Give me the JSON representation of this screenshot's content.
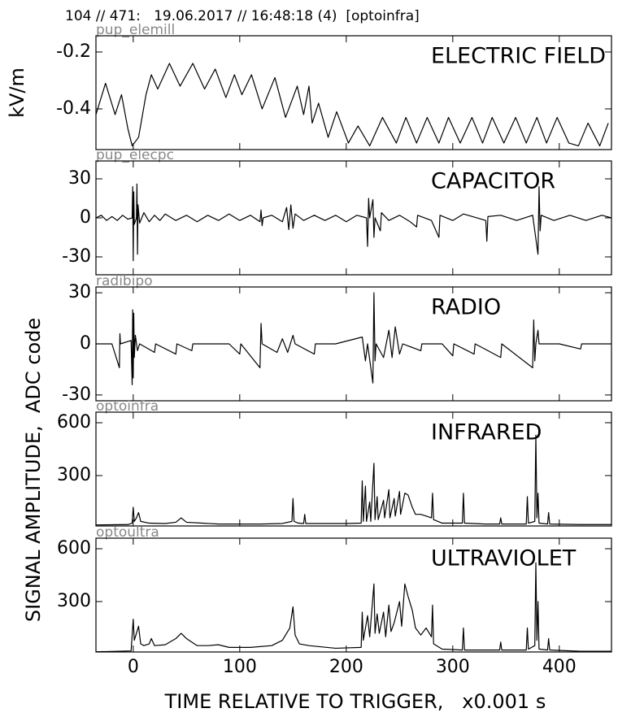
{
  "header": "104 // 471:   19.06.2017 // 16:48:18 (4)  [optoinfra]",
  "ylabel": "SIGNAL AMPLITUDE,  ADC code",
  "xlabel": "TIME RELATIVE TO TRIGGER,   x0.001 s",
  "chart_data": [
    {
      "type": "line",
      "source_label": "pup_elemill",
      "title": "ELECTRIC FIELD",
      "ylabel": "kV/m",
      "x": [
        -35,
        -26,
        -17,
        -11,
        -5,
        -1,
        5,
        12,
        17,
        23,
        34,
        44,
        56,
        67,
        77,
        87,
        95,
        102,
        111,
        121,
        133,
        143,
        154,
        160,
        165,
        168,
        174,
        183,
        191,
        202,
        211,
        222,
        234,
        247,
        256,
        266,
        276,
        287,
        296,
        307,
        318,
        328,
        337,
        348,
        359,
        369,
        379,
        388,
        398,
        409,
        418,
        427,
        438,
        446
      ],
      "series": [
        {
          "color": "#000000",
          "values": [
            -0.42,
            -0.31,
            -0.42,
            -0.35,
            -0.47,
            -0.53,
            -0.5,
            -0.35,
            -0.28,
            -0.33,
            -0.24,
            -0.32,
            -0.24,
            -0.33,
            -0.26,
            -0.36,
            -0.28,
            -0.35,
            -0.28,
            -0.4,
            -0.29,
            -0.43,
            -0.32,
            -0.42,
            -0.32,
            -0.45,
            -0.38,
            -0.5,
            -0.41,
            -0.52,
            -0.46,
            -0.53,
            -0.43,
            -0.52,
            -0.43,
            -0.52,
            -0.43,
            -0.52,
            -0.43,
            -0.52,
            -0.43,
            -0.52,
            -0.43,
            -0.52,
            -0.43,
            -0.52,
            -0.43,
            -0.52,
            -0.43,
            -0.52,
            -0.53,
            -0.45,
            -0.53,
            -0.45
          ]
        }
      ],
      "xlim": [
        -35,
        449
      ],
      "xticks": [
        0,
        100,
        200,
        300,
        400
      ],
      "ylim": [
        -0.543,
        -0.143
      ],
      "yticks": [
        -0.2,
        -0.4
      ]
    },
    {
      "type": "line",
      "source_label": "pup_elecpc",
      "title": "CAPACITOR",
      "x": [
        -35,
        -30,
        -25,
        -20,
        -15,
        -10,
        -5,
        -1,
        -0.5,
        0,
        0.5,
        1,
        3,
        3.5,
        4,
        4.5,
        6,
        10,
        15,
        20,
        25,
        30,
        40,
        50,
        60,
        70,
        80,
        90,
        100,
        110,
        119,
        120,
        121,
        122,
        130,
        140,
        144,
        146,
        148,
        150,
        152,
        160,
        170,
        180,
        190,
        200,
        210,
        219,
        220,
        221,
        222,
        225,
        226,
        227,
        232,
        233,
        240,
        250,
        260,
        266,
        267,
        280,
        287,
        288,
        300,
        310,
        331,
        332,
        333,
        345,
        360,
        375,
        380,
        381,
        382,
        383,
        395,
        410,
        425,
        440,
        449
      ],
      "series": [
        {
          "color": "#000000",
          "values": [
            0,
            2,
            -2,
            1,
            -2,
            2,
            -1,
            0,
            24,
            -33,
            20,
            -5,
            0,
            26,
            -28,
            10,
            -4,
            4,
            -3,
            2,
            -2,
            3,
            -2,
            2,
            -3,
            2,
            -2,
            3,
            -2,
            2,
            -3,
            6,
            -6,
            0,
            2,
            -3,
            8,
            -9,
            10,
            -8,
            3,
            -2,
            2,
            -2,
            2,
            -3,
            2,
            0,
            -22,
            15,
            0,
            14,
            -15,
            0,
            -10,
            4,
            -2,
            2,
            -3,
            -7,
            2,
            -2,
            -15,
            2,
            -2,
            3,
            -2,
            -18,
            1,
            2,
            -2,
            2,
            -28,
            24,
            -10,
            2,
            -2,
            2,
            -2,
            2,
            0
          ]
        }
      ],
      "xlim": [
        -35,
        449
      ],
      "xticks": [
        0,
        100,
        200,
        300,
        400
      ],
      "ylim": [
        -43.75,
        43.75
      ],
      "yticks": [
        30,
        0,
        -30
      ]
    },
    {
      "type": "line",
      "source_label": "radibipo",
      "title": "RADIO",
      "x": [
        -35,
        -20,
        -13,
        -12.5,
        -12,
        -2,
        -1,
        -0.5,
        0,
        0.5,
        1,
        2,
        4,
        6,
        20,
        21,
        40,
        41,
        55,
        56,
        90,
        100,
        101,
        119,
        120,
        121,
        135,
        140,
        145,
        150,
        152,
        170,
        171,
        190,
        215,
        218,
        220,
        225,
        226,
        227,
        228,
        235,
        240,
        243,
        246,
        250,
        253,
        270,
        271,
        290,
        300,
        301,
        320,
        321,
        345,
        346,
        375,
        376,
        377,
        378,
        380,
        381,
        400,
        420,
        421,
        449
      ],
      "series": [
        {
          "color": "#000000",
          "values": [
            0,
            0,
            -14,
            6,
            0,
            2,
            -24,
            20,
            -20,
            18,
            -8,
            5,
            -4,
            0,
            -5,
            0,
            -6,
            0,
            -4,
            0,
            0,
            -6,
            0,
            -14,
            12,
            0,
            -5,
            3,
            -5,
            5,
            0,
            -6,
            0,
            0,
            4,
            -10,
            0,
            -23,
            30,
            -10,
            0,
            -8,
            8,
            -8,
            10,
            -6,
            0,
            -4,
            0,
            0,
            -7,
            0,
            -6,
            0,
            -8,
            0,
            -14,
            14,
            -10,
            0,
            8,
            0,
            0,
            -3,
            0,
            0
          ]
        }
      ],
      "xlim": [
        -35,
        449
      ],
      "xticks": [
        0,
        100,
        200,
        300,
        400
      ],
      "ylim": [
        -33.4,
        33.4
      ],
      "yticks": [
        30,
        0,
        -30
      ]
    },
    {
      "type": "line",
      "source_label": "optoinfra",
      "title": "INFRARED",
      "x": [
        -35,
        -5,
        -1,
        0,
        1,
        3,
        5,
        7,
        15,
        30,
        40,
        45,
        50,
        80,
        120,
        140,
        149,
        150,
        151,
        155,
        160,
        161,
        162,
        200,
        214,
        215,
        216,
        218,
        219,
        222,
        223,
        226,
        227,
        229,
        230,
        235,
        236,
        240,
        241,
        245,
        246,
        250,
        251,
        255,
        258,
        262,
        265,
        270,
        275,
        280,
        281,
        282,
        290,
        309,
        310,
        311,
        330,
        344,
        345,
        346,
        369,
        370,
        371,
        377,
        378,
        379,
        380,
        381,
        389,
        390,
        391,
        420,
        449
      ],
      "series": [
        {
          "color": "#000000",
          "values": [
            20,
            22,
            30,
            120,
            40,
            60,
            90,
            40,
            30,
            28,
            35,
            60,
            35,
            25,
            25,
            28,
            40,
            170,
            40,
            30,
            28,
            80,
            28,
            28,
            30,
            270,
            40,
            240,
            40,
            150,
            40,
            370,
            50,
            180,
            50,
            160,
            60,
            220,
            60,
            170,
            70,
            210,
            80,
            200,
            190,
            120,
            80,
            80,
            70,
            60,
            200,
            50,
            30,
            30,
            200,
            30,
            25,
            25,
            60,
            25,
            25,
            180,
            30,
            40,
            530,
            60,
            200,
            30,
            25,
            90,
            25,
            22,
            22
          ]
        }
      ],
      "xlim": [
        -35,
        449
      ],
      "xticks": [
        0,
        100,
        200,
        300,
        400
      ],
      "ylim": [
        14,
        660
      ],
      "yticks": [
        600,
        300
      ]
    },
    {
      "type": "line",
      "source_label": "optoultra",
      "title": "ULTRAVIOLET",
      "x": [
        -35,
        -2,
        0,
        1,
        3,
        5,
        7,
        10,
        15,
        17,
        20,
        30,
        40,
        45,
        50,
        60,
        70,
        80,
        90,
        110,
        130,
        140,
        147,
        150,
        152,
        156,
        165,
        190,
        214,
        215,
        216,
        220,
        222,
        226,
        227,
        229,
        231,
        235,
        237,
        240,
        242,
        245,
        250,
        252,
        255,
        258,
        262,
        265,
        270,
        275,
        280,
        281,
        282,
        290,
        309,
        310,
        311,
        344,
        345,
        346,
        369,
        370,
        371,
        377,
        378,
        379,
        380,
        381,
        389,
        390,
        391,
        420,
        449
      ],
      "series": [
        {
          "color": "#000000",
          "values": [
            15,
            20,
            200,
            80,
            120,
            160,
            60,
            50,
            60,
            90,
            50,
            55,
            90,
            120,
            90,
            50,
            50,
            55,
            40,
            40,
            50,
            80,
            150,
            270,
            110,
            60,
            50,
            35,
            40,
            240,
            80,
            220,
            100,
            400,
            120,
            230,
            120,
            240,
            100,
            280,
            130,
            180,
            300,
            160,
            400,
            330,
            250,
            150,
            110,
            150,
            100,
            280,
            60,
            30,
            25,
            150,
            25,
            25,
            70,
            25,
            25,
            150,
            30,
            50,
            520,
            80,
            300,
            30,
            25,
            90,
            25,
            18,
            18
          ]
        }
      ],
      "xlim": [
        -35,
        449
      ],
      "xticks": [
        0,
        100,
        200,
        300,
        400
      ],
      "ylim": [
        14,
        660
      ],
      "yticks": [
        600,
        300
      ]
    }
  ]
}
